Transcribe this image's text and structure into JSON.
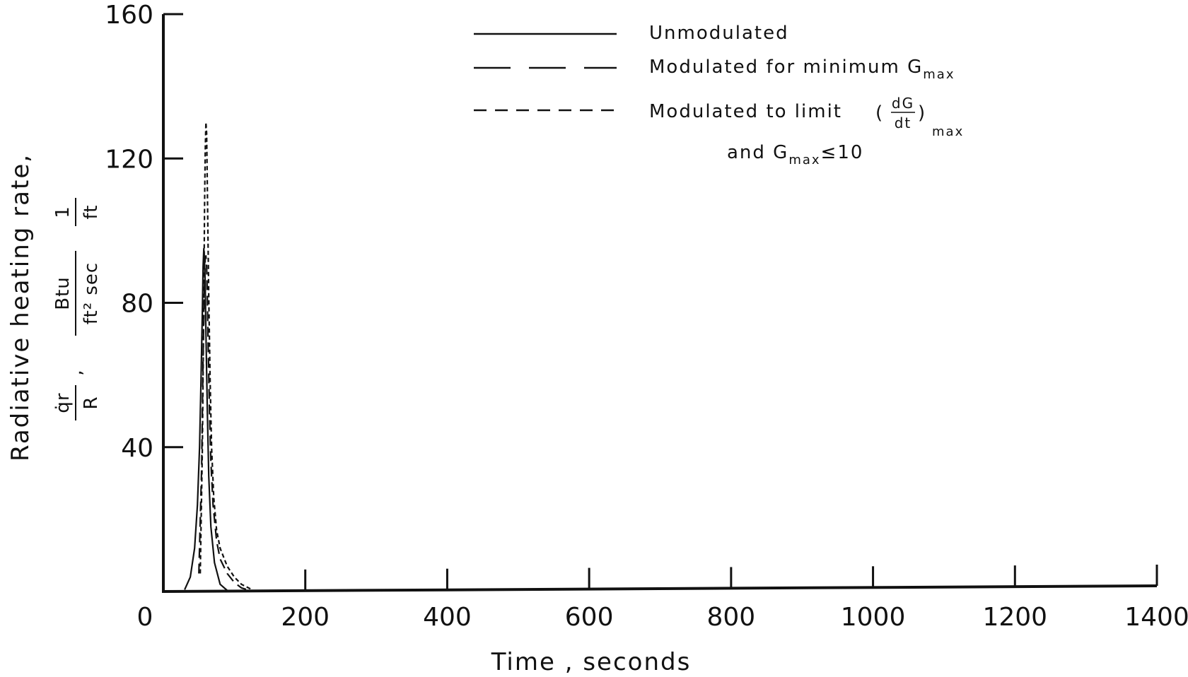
{
  "chart_data": {
    "type": "line",
    "title": "",
    "xlabel": "Time , seconds",
    "ylabel": {
      "main": "Radiative heating rate,",
      "sym_num": "q̇r",
      "sym_den": "R",
      "unit_num": "Btu",
      "unit_den": "ft² sec",
      "unit2_num": "1",
      "unit2_den": "ft"
    },
    "xlim": [
      0,
      1400
    ],
    "ylim": [
      0,
      160
    ],
    "x_ticks": [
      "0",
      "200",
      "400",
      "600",
      "800",
      "1000",
      "1200",
      "1400"
    ],
    "y_ticks": [
      "40",
      "80",
      "120",
      "160"
    ],
    "grid": false,
    "legend_position": "top",
    "legend": {
      "unmodulated": "Unmodulated",
      "min_gmax": "Modulated for minimum G",
      "min_gmax_sub": "max",
      "limit_line1": "Modulated to limit",
      "limit_frac_num": "dG",
      "limit_frac_den": "dt",
      "limit_sub": "max",
      "limit_line2_a": "and G",
      "limit_line2_sub": "max",
      "limit_line2_b": "≤10"
    },
    "series": [
      {
        "name": "Unmodulated",
        "style": "solid",
        "x": [
          30,
          38,
          44,
          48,
          51,
          53,
          55,
          56,
          57,
          58,
          59,
          60,
          62,
          64,
          67,
          72,
          80,
          90
        ],
        "y": [
          0.5,
          4,
          12,
          24,
          40,
          58,
          78,
          90,
          95,
          92,
          85,
          72,
          50,
          32,
          18,
          8,
          2,
          0.3
        ]
      },
      {
        "name": "Modulated for minimum Gmax",
        "style": "long-dash",
        "x": [
          50,
          54,
          56,
          58,
          59,
          60,
          61,
          62,
          63,
          65,
          67,
          70,
          75,
          80,
          90,
          100,
          110,
          118
        ],
        "y": [
          5,
          35,
          65,
          85,
          92,
          93,
          90,
          82,
          70,
          50,
          36,
          24,
          14,
          9,
          5,
          2.5,
          1,
          0.5
        ]
      },
      {
        "name": "Modulated to limit (dG/dt)max and Gmax ≤ 10",
        "style": "short-dash",
        "x": [
          52,
          55,
          57,
          58,
          59,
          60,
          61,
          62,
          64,
          66,
          68,
          71,
          75,
          80,
          90,
          100,
          110,
          120,
          125
        ],
        "y": [
          5,
          40,
          80,
          105,
          122,
          130,
          127,
          112,
          82,
          58,
          40,
          26,
          17,
          12,
          7,
          4,
          2,
          1,
          0.5
        ]
      }
    ]
  }
}
